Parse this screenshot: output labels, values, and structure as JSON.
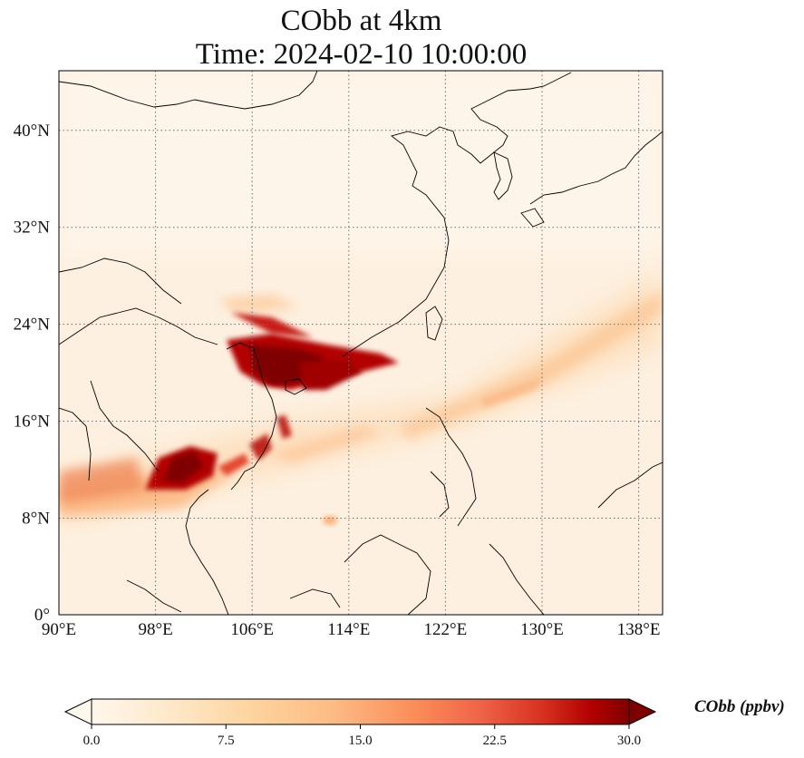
{
  "map": {
    "title_line1": "CObb at 4km",
    "title_line2": "Time: 2024-02-10 10:00:00",
    "lon_ticks": [
      "90°E",
      "98°E",
      "106°E",
      "114°E",
      "122°E",
      "130°E",
      "138°E"
    ],
    "lat_ticks": [
      "0°",
      "8°N",
      "16°N",
      "24°N",
      "32°N",
      "40°N"
    ],
    "gridlines": true,
    "gridline_style": "dotted",
    "colormap": "OrRd",
    "colors": {
      "low": "#fff7ec",
      "mid": "#fc8d59",
      "high": "#7f0000",
      "coast": "#000000",
      "grid": "#777777"
    }
  },
  "colorbar": {
    "label": "CObb (ppbv)",
    "ticks": [
      "0.0",
      "7.5",
      "15.0",
      "22.5",
      "30.0"
    ],
    "extend": "both"
  }
}
